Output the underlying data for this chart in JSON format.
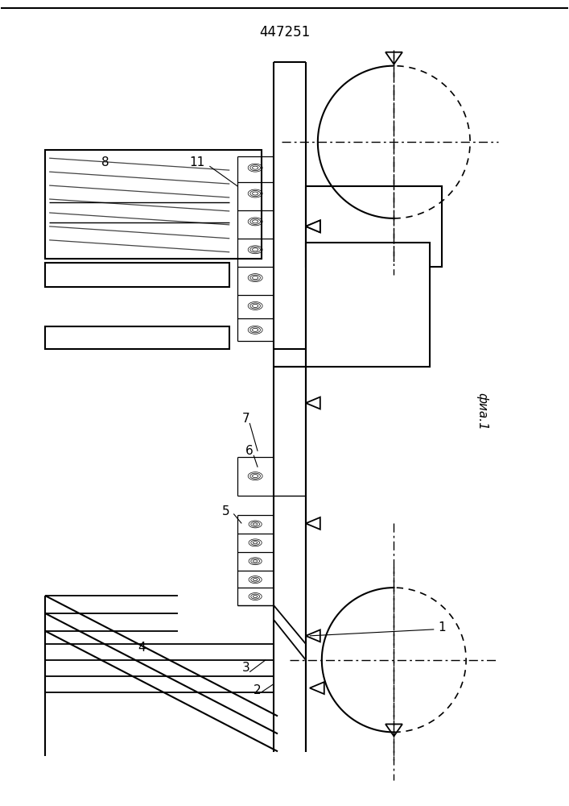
{
  "title": "447251",
  "bg_color": "#ffffff",
  "fig_label": "фиа.1"
}
